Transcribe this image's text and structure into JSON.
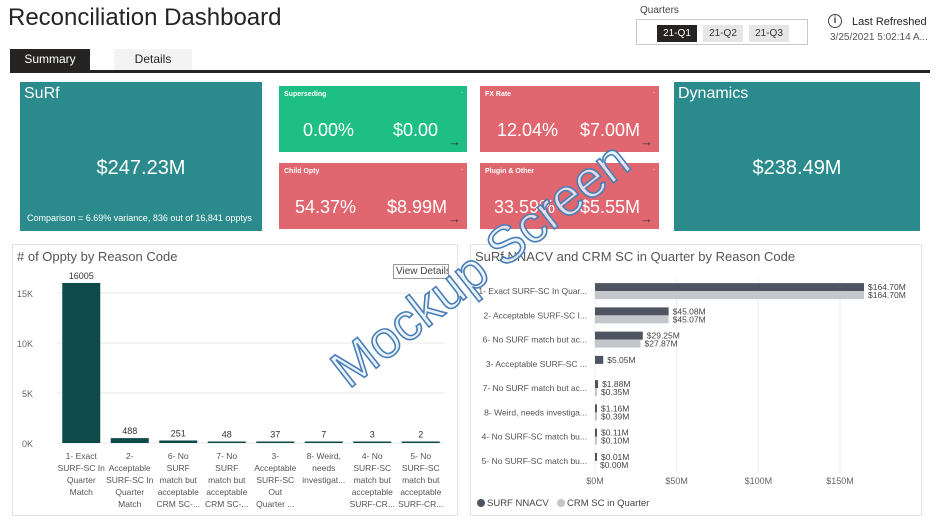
{
  "header": {
    "title": "Reconciliation Dashboard",
    "quarters_label": "Quarters",
    "quarters": [
      "21-Q1",
      "21-Q2",
      "21-Q3"
    ],
    "selected_quarter": "21-Q1",
    "refresh_label": "Last Refreshed",
    "refresh_value": "3/25/2021 5:02:14 A..."
  },
  "tabs": [
    {
      "label": "Summary",
      "active": true
    },
    {
      "label": "Details",
      "active": false
    }
  ],
  "cards": {
    "surf": {
      "title": "SuRf",
      "value": "$247.23M",
      "comparison": "Comparison = 6.69% variance, 836 out of 16,841 opptys"
    },
    "dynamics": {
      "title": "Dynamics",
      "value": "$238.49M"
    },
    "superseding": {
      "title": "Superseding",
      "pct": "0.00%",
      "amount": "$0.00"
    },
    "fx_rate": {
      "title": "FX Rate",
      "pct": "12.04%",
      "amount": "$7.00M"
    },
    "child_opty": {
      "title": "Child Opty",
      "pct": "54.37%",
      "amount": "$8.99M"
    },
    "plugin_other": {
      "title": "Plugin & Other",
      "pct": "33.59%",
      "amount": "$5.55M"
    }
  },
  "colors": {
    "teal": "#2b8a8c",
    "green": "#1dbf85",
    "red": "#e06670",
    "bar_dark": "#0f4a4a",
    "surf_series": "#4d5563",
    "crm_series": "#c3c6cb"
  },
  "watermark": "Mockup Screen",
  "view_details_label": "View Details",
  "chart_data": [
    {
      "type": "bar",
      "title": "# of Oppty by Reason Code",
      "categories": [
        "1- Exact SURF-SC In Quarter Match",
        "2- Acceptable SURF-SC In Quarter Match",
        "6- No SURF match but acceptable CRM SC-...",
        "7- No SURF match but acceptable CRM SC-...",
        "3- Acceptable SURF-SC Out Quarter ...",
        "8- Weird, needs investigat...",
        "4- No SURF-SC match but acceptable SURF-CR...",
        "5- No SURF-SC match but acceptable SURF-CR..."
      ],
      "category_lines": [
        [
          "1- Exact",
          "SURF-SC In",
          "Quarter",
          "Match"
        ],
        [
          "2-",
          "Acceptable",
          "SURF-SC In",
          "Quarter",
          "Match"
        ],
        [
          "6- No",
          "SURF",
          "match but",
          "acceptable",
          "CRM SC-..."
        ],
        [
          "7- No",
          "SURF",
          "match but",
          "acceptable",
          "CRM SC-..."
        ],
        [
          "3-",
          "Acceptable",
          "SURF-SC",
          "Out",
          "Quarter ..."
        ],
        [
          "8- Weird,",
          "needs",
          "investigat..."
        ],
        [
          "4- No",
          "SURF-SC",
          "match but",
          "acceptable",
          "SURF-CR..."
        ],
        [
          "5- No",
          "SURF-SC",
          "match but",
          "acceptable",
          "SURF-CR..."
        ]
      ],
      "values": [
        16005,
        488,
        251,
        48,
        37,
        7,
        3,
        2
      ],
      "data_labels": [
        "16005",
        "488",
        "251",
        "48",
        "37",
        "7",
        "3",
        "2"
      ],
      "ylim": [
        0,
        17000
      ],
      "yticks": [
        0,
        5000,
        10000,
        15000
      ],
      "ytick_labels": [
        "0K",
        "5K",
        "10K",
        "15K"
      ],
      "grid": true
    },
    {
      "type": "bar",
      "orientation": "horizontal",
      "title": "SuRf NNACV and CRM SC in Quarter by Reason Code",
      "categories": [
        "1- Exact SURF-SC In Quar...",
        "2- Acceptable SURF-SC I...",
        "6- No SURF match but ac...",
        "3- Acceptable SURF-SC ...",
        "7- No SURF match but ac...",
        "8- Weird, needs investiga...",
        "4- No SURF-SC match bu...",
        "5- No SURF-SC match bu..."
      ],
      "series": [
        {
          "name": "SURF NNACV",
          "values": [
            164.7,
            45.08,
            29.25,
            5.05,
            1.88,
            1.16,
            0.11,
            0.01
          ],
          "labels": [
            "$164.70M",
            "$45.08M",
            "$29.25M",
            "$5.05M",
            "$1.88M",
            "$1.16M",
            "$0.11M",
            "$0.01M"
          ]
        },
        {
          "name": "CRM SC in Quarter",
          "values": [
            164.7,
            45.07,
            27.87,
            0,
            0.35,
            0.39,
            0.1,
            0.0
          ],
          "labels": [
            "$164.70M",
            "$45.07M",
            "$27.87M",
            "",
            "$0.35M",
            "$0.39M",
            "$0.10M",
            "$0.00M"
          ]
        }
      ],
      "xlim": [
        0,
        180
      ],
      "xticks": [
        0,
        50,
        100,
        150
      ],
      "xtick_labels": [
        "$0M",
        "$50M",
        "$100M",
        "$150M"
      ],
      "legend": "bottom-left",
      "grid": true
    }
  ]
}
